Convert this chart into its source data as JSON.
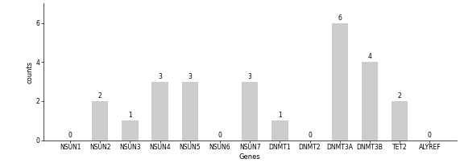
{
  "categories": [
    "NSUN1",
    "NSUN2",
    "NSUN3",
    "NSUN4",
    "NSUN5",
    "NSUN6",
    "NSUN7",
    "DNMT1",
    "DNMT2",
    "DNMT3A",
    "DNMT3B",
    "TET2",
    "ALYREF"
  ],
  "values": [
    0,
    2,
    1,
    3,
    3,
    0,
    3,
    1,
    0,
    6,
    4,
    2,
    0
  ],
  "bar_color": "#cccccc",
  "xlabel": "Genes",
  "ylabel": "counts",
  "ylim": [
    0,
    7.0
  ],
  "yticks": [
    0,
    2,
    4,
    6
  ],
  "bar_width": 0.55,
  "label_fontsize": 6,
  "tick_fontsize": 5.5,
  "value_fontsize": 5.5,
  "background_color": "#ffffff"
}
